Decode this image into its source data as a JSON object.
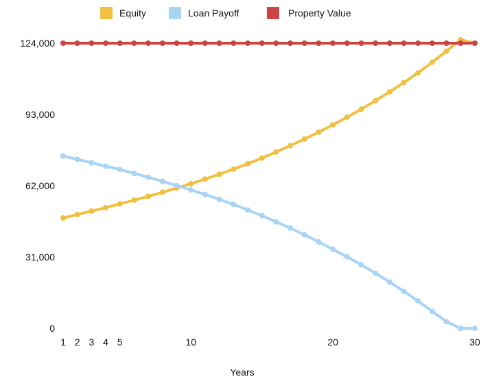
{
  "chart_data": {
    "type": "line",
    "xlabel": "Years",
    "ylabel": "",
    "x": [
      1,
      2,
      3,
      4,
      5,
      6,
      7,
      8,
      9,
      10,
      11,
      12,
      13,
      14,
      15,
      16,
      17,
      18,
      19,
      20,
      21,
      22,
      23,
      24,
      25,
      26,
      27,
      28,
      29,
      30
    ],
    "x_tick_labels": [
      "1",
      "2",
      "3",
      "4",
      "5",
      "10",
      "20",
      "30"
    ],
    "x_tick_values": [
      1,
      2,
      3,
      4,
      5,
      10,
      20,
      30
    ],
    "y_tick_labels": [
      "0",
      "31,000",
      "62,000",
      "93,000",
      "124,000"
    ],
    "y_tick_values": [
      0,
      31000,
      62000,
      93000,
      124000
    ],
    "xlim": [
      1,
      30
    ],
    "ylim": [
      0,
      124000
    ],
    "grid": false,
    "legend_position": "top",
    "series": [
      {
        "name": "Equity",
        "color": "#f0c040",
        "values": [
          48000,
          49500,
          51000,
          52500,
          54100,
          55700,
          57400,
          59200,
          61000,
          62900,
          64900,
          67000,
          69200,
          71600,
          74000,
          76700,
          79400,
          82300,
          85300,
          88500,
          91800,
          95300,
          99000,
          102800,
          106900,
          111100,
          115700,
          120500,
          125500,
          124000
        ]
      },
      {
        "name": "Loan Payoff",
        "color": "#a8d4f5",
        "values": [
          75000,
          73500,
          72000,
          70500,
          69100,
          67400,
          65700,
          63900,
          62100,
          60200,
          58200,
          56100,
          53900,
          51500,
          49000,
          46300,
          43600,
          40700,
          37600,
          34400,
          31100,
          27600,
          24000,
          20100,
          16100,
          11900,
          7400,
          2900,
          0,
          0
        ]
      },
      {
        "name": "Property Value",
        "color": "#cc4444",
        "values": [
          124000,
          124000,
          124000,
          124000,
          124000,
          124000,
          124000,
          124000,
          124000,
          124000,
          124000,
          124000,
          124000,
          124000,
          124000,
          124000,
          124000,
          124000,
          124000,
          124000,
          124000,
          124000,
          124000,
          124000,
          124000,
          124000,
          124000,
          124000,
          124000,
          124000
        ]
      }
    ]
  }
}
